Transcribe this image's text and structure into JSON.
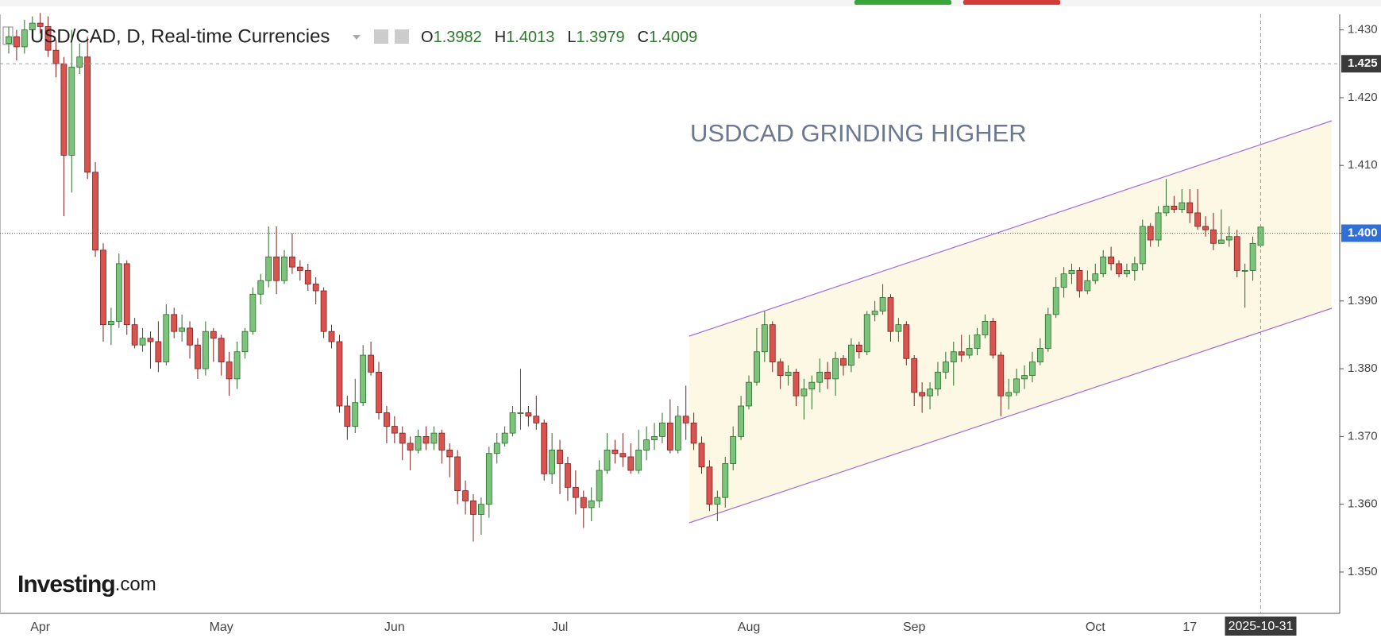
{
  "chart_data": {
    "type": "candlestick",
    "title": "USD/CAD, D, Real-time Currencies",
    "ohlc_labels": [
      "O",
      "H",
      "L",
      "C"
    ],
    "annotation": "USDCAD GRINDING HIGHER",
    "logo": "Investing",
    "logo_suffix": ".com",
    "up_color": "#7cc47c",
    "down_color": "#d9534f",
    "ylim": [
      1.3439,
      1.4323
    ],
    "yticks": [
      {
        "value": 1.35,
        "label": "1.350"
      },
      {
        "value": 1.36,
        "label": "1.360"
      },
      {
        "value": 1.37,
        "label": "1.370"
      },
      {
        "value": 1.38,
        "label": "1.380"
      },
      {
        "value": 1.39,
        "label": "1.390"
      },
      {
        "value": 1.4,
        "label": "1.400"
      },
      {
        "value": 1.41,
        "label": "1.410"
      },
      {
        "value": 1.42,
        "label": "1.420"
      },
      {
        "value": 1.43,
        "label": "1.430"
      }
    ],
    "crosshair": {
      "value": 1.425,
      "label": "1.425"
    },
    "price_line": {
      "value": 1.4,
      "label": "1.400"
    },
    "categories": [
      null,
      null,
      null,
      null,
      "Apr",
      null,
      null,
      null,
      null,
      null,
      null,
      null,
      null,
      null,
      null,
      null,
      null,
      null,
      null,
      null,
      null,
      null,
      null,
      null,
      null,
      null,
      null,
      "May",
      null,
      null,
      null,
      null,
      null,
      null,
      null,
      null,
      null,
      null,
      null,
      null,
      null,
      null,
      null,
      null,
      null,
      null,
      null,
      null,
      null,
      "Jun",
      null,
      null,
      null,
      null,
      null,
      null,
      null,
      null,
      null,
      null,
      null,
      null,
      null,
      null,
      null,
      null,
      null,
      null,
      null,
      null,
      "Jul",
      null,
      null,
      null,
      null,
      null,
      null,
      null,
      null,
      null,
      null,
      null,
      null,
      null,
      null,
      null,
      null,
      null,
      null,
      null,
      null,
      null,
      null,
      null,
      "Aug",
      null,
      null,
      null,
      null,
      null,
      null,
      null,
      null,
      null,
      null,
      null,
      null,
      null,
      null,
      null,
      null,
      null,
      null,
      null,
      null,
      "Sep",
      null,
      null,
      null,
      null,
      null,
      null,
      null,
      null,
      null,
      null,
      null,
      null,
      null,
      null,
      null,
      null,
      null,
      null,
      null,
      null,
      null,
      null,
      "Oct",
      null,
      null,
      null,
      null,
      null,
      null,
      null,
      null,
      null,
      null,
      null,
      "17",
      null,
      null,
      null,
      null,
      null,
      null,
      null,
      null,
      "2025-10-31"
    ],
    "series": [
      {
        "name": "USD/CAD",
        "open": [
          1.428,
          1.429,
          1.4275,
          1.43,
          1.431,
          1.4305,
          1.427,
          1.425,
          1.4115,
          1.4245,
          1.426,
          1.409,
          1.3975,
          1.3865,
          1.387,
          1.3955,
          1.3865,
          1.3835,
          1.3845,
          1.384,
          1.381,
          1.388,
          1.3855,
          1.386,
          1.3835,
          1.38,
          1.3855,
          1.3845,
          1.381,
          1.3785,
          1.3825,
          1.3855,
          1.391,
          1.393,
          1.3965,
          1.393,
          1.3965,
          1.395,
          1.3945,
          1.3925,
          1.3915,
          1.3855,
          1.384,
          1.3745,
          1.3715,
          1.375,
          1.382,
          1.3795,
          1.3735,
          1.3715,
          1.3705,
          1.369,
          1.368,
          1.37,
          1.369,
          1.3705,
          1.368,
          1.367,
          1.362,
          1.3605,
          1.3585,
          1.36,
          1.3675,
          1.369,
          1.3705,
          1.3735,
          1.3735,
          1.373,
          1.372,
          1.3645,
          1.368,
          1.366,
          1.3625,
          1.361,
          1.3595,
          1.3605,
          1.365,
          1.368,
          1.3675,
          1.367,
          1.365,
          1.368,
          1.3695,
          1.37,
          1.372,
          1.368,
          1.373,
          1.372,
          1.369,
          1.3655,
          1.36,
          1.361,
          1.366,
          1.37,
          1.3745,
          1.378,
          1.3825,
          1.3865,
          1.381,
          1.379,
          1.3795,
          1.376,
          1.377,
          1.378,
          1.3795,
          1.3785,
          1.3815,
          1.3805,
          1.3835,
          1.3825,
          1.388,
          1.3885,
          1.3905,
          1.3855,
          1.3865,
          1.3815,
          1.3765,
          1.376,
          1.377,
          1.3795,
          1.381,
          1.3825,
          1.382,
          1.383,
          1.385,
          1.387,
          1.382,
          1.376,
          1.3765,
          1.3785,
          1.379,
          1.381,
          1.383,
          1.388,
          1.392,
          1.394,
          1.3945,
          1.3915,
          1.393,
          1.394,
          1.3965,
          1.3955,
          1.394,
          1.3945,
          1.3955,
          1.401,
          1.399,
          1.403,
          1.404,
          1.4035,
          1.4045,
          1.403,
          1.401,
          1.4005,
          1.3985,
          1.399,
          1.3995,
          1.3945,
          1.3945,
          1.3982
        ],
        "high": [
          1.4305,
          1.43,
          1.4315,
          1.432,
          1.4325,
          1.432,
          1.4285,
          1.426,
          1.43,
          1.428,
          1.429,
          1.4105,
          1.3985,
          1.389,
          1.397,
          1.396,
          1.3875,
          1.386,
          1.3855,
          1.387,
          1.3895,
          1.389,
          1.388,
          1.387,
          1.3845,
          1.387,
          1.386,
          1.385,
          1.3825,
          1.384,
          1.386,
          1.392,
          1.394,
          1.401,
          1.401,
          1.3975,
          1.4,
          1.396,
          1.3955,
          1.3935,
          1.392,
          1.3865,
          1.385,
          1.376,
          1.3785,
          1.3835,
          1.384,
          1.381,
          1.3745,
          1.373,
          1.3715,
          1.37,
          1.371,
          1.3715,
          1.3715,
          1.371,
          1.369,
          1.368,
          1.3635,
          1.3615,
          1.361,
          1.3685,
          1.3705,
          1.3715,
          1.3745,
          1.38,
          1.3745,
          1.376,
          1.3725,
          1.3705,
          1.3695,
          1.367,
          1.365,
          1.362,
          1.3625,
          1.3665,
          1.3705,
          1.3695,
          1.3705,
          1.369,
          1.371,
          1.3715,
          1.372,
          1.3735,
          1.3755,
          1.3745,
          1.3775,
          1.3735,
          1.37,
          1.3665,
          1.362,
          1.367,
          1.3715,
          1.376,
          1.379,
          1.386,
          1.3885,
          1.387,
          1.3815,
          1.3805,
          1.38,
          1.3785,
          1.379,
          1.3815,
          1.381,
          1.3825,
          1.382,
          1.3845,
          1.384,
          1.3885,
          1.39,
          1.3925,
          1.391,
          1.3875,
          1.387,
          1.382,
          1.378,
          1.378,
          1.381,
          1.3825,
          1.384,
          1.385,
          1.385,
          1.386,
          1.388,
          1.3875,
          1.3825,
          1.3785,
          1.38,
          1.3805,
          1.3825,
          1.3845,
          1.389,
          1.3935,
          1.395,
          1.3955,
          1.395,
          1.3945,
          1.3955,
          1.3975,
          1.398,
          1.396,
          1.3955,
          1.3965,
          1.402,
          1.4015,
          1.404,
          1.408,
          1.4055,
          1.4065,
          1.4065,
          1.4065,
          1.4025,
          1.403,
          1.4035,
          1.401,
          1.4005,
          1.3955,
          1.3995,
          1.4013
        ],
        "low": [
          1.4265,
          1.4255,
          1.4265,
          1.429,
          1.4295,
          1.426,
          1.423,
          1.4025,
          1.406,
          1.4235,
          1.408,
          1.3965,
          1.384,
          1.3835,
          1.386,
          1.385,
          1.383,
          1.3825,
          1.38,
          1.3795,
          1.3805,
          1.3845,
          1.384,
          1.3815,
          1.3785,
          1.379,
          1.381,
          1.379,
          1.376,
          1.377,
          1.3815,
          1.385,
          1.3895,
          1.392,
          1.391,
          1.3925,
          1.394,
          1.393,
          1.3915,
          1.3895,
          1.3845,
          1.383,
          1.3735,
          1.3695,
          1.3705,
          1.3745,
          1.379,
          1.3725,
          1.369,
          1.369,
          1.3665,
          1.365,
          1.3675,
          1.368,
          1.368,
          1.366,
          1.364,
          1.36,
          1.3585,
          1.3545,
          1.3555,
          1.358,
          1.366,
          1.3685,
          1.37,
          1.371,
          1.3715,
          1.371,
          1.3635,
          1.363,
          1.3615,
          1.3605,
          1.3585,
          1.3565,
          1.3575,
          1.3595,
          1.3645,
          1.366,
          1.3655,
          1.3645,
          1.3645,
          1.3665,
          1.368,
          1.369,
          1.3675,
          1.3675,
          1.3695,
          1.368,
          1.3645,
          1.359,
          1.3575,
          1.3595,
          1.365,
          1.3695,
          1.374,
          1.3775,
          1.381,
          1.3795,
          1.377,
          1.3775,
          1.3745,
          1.3725,
          1.374,
          1.3765,
          1.377,
          1.376,
          1.379,
          1.3795,
          1.3815,
          1.382,
          1.387,
          1.388,
          1.384,
          1.384,
          1.3805,
          1.3745,
          1.3735,
          1.374,
          1.376,
          1.3785,
          1.3775,
          1.381,
          1.3815,
          1.382,
          1.3845,
          1.3815,
          1.373,
          1.374,
          1.376,
          1.377,
          1.378,
          1.3805,
          1.3825,
          1.3875,
          1.3905,
          1.3925,
          1.3905,
          1.391,
          1.3925,
          1.3935,
          1.3945,
          1.3935,
          1.3935,
          1.393,
          1.3945,
          1.398,
          1.398,
          1.4025,
          1.403,
          1.403,
          1.4015,
          1.4005,
          1.3995,
          1.3975,
          1.3985,
          1.398,
          1.3935,
          1.389,
          1.393,
          1.3979
        ],
        "close": [
          1.429,
          1.4275,
          1.43,
          1.431,
          1.4305,
          1.427,
          1.425,
          1.4115,
          1.4245,
          1.426,
          1.409,
          1.3975,
          1.3865,
          1.387,
          1.3955,
          1.3865,
          1.3835,
          1.3845,
          1.384,
          1.381,
          1.388,
          1.3855,
          1.386,
          1.3835,
          1.38,
          1.3855,
          1.3845,
          1.381,
          1.3785,
          1.3825,
          1.3855,
          1.391,
          1.393,
          1.3965,
          1.393,
          1.3965,
          1.395,
          1.3945,
          1.3925,
          1.3915,
          1.3855,
          1.384,
          1.3745,
          1.3715,
          1.375,
          1.382,
          1.3795,
          1.3735,
          1.3715,
          1.3705,
          1.369,
          1.368,
          1.37,
          1.369,
          1.3705,
          1.368,
          1.367,
          1.362,
          1.3605,
          1.3585,
          1.36,
          1.3675,
          1.369,
          1.3705,
          1.3735,
          1.3735,
          1.373,
          1.372,
          1.3645,
          1.368,
          1.366,
          1.3625,
          1.361,
          1.3595,
          1.3605,
          1.365,
          1.368,
          1.3675,
          1.367,
          1.365,
          1.368,
          1.3695,
          1.37,
          1.372,
          1.368,
          1.373,
          1.372,
          1.369,
          1.3655,
          1.36,
          1.361,
          1.366,
          1.37,
          1.3745,
          1.378,
          1.3825,
          1.3865,
          1.381,
          1.379,
          1.3795,
          1.376,
          1.377,
          1.378,
          1.3795,
          1.3785,
          1.3815,
          1.3805,
          1.3835,
          1.3825,
          1.388,
          1.3885,
          1.3905,
          1.3855,
          1.3865,
          1.3815,
          1.3765,
          1.376,
          1.377,
          1.3795,
          1.381,
          1.3825,
          1.382,
          1.383,
          1.385,
          1.387,
          1.382,
          1.376,
          1.3765,
          1.3785,
          1.379,
          1.381,
          1.383,
          1.388,
          1.392,
          1.394,
          1.3945,
          1.3915,
          1.393,
          1.394,
          1.3965,
          1.3955,
          1.394,
          1.3945,
          1.3955,
          1.401,
          1.399,
          1.403,
          1.404,
          1.4035,
          1.4045,
          1.403,
          1.401,
          1.4005,
          1.3985,
          1.399,
          1.3995,
          1.3945,
          1.3945,
          1.3985,
          1.4009
        ]
      }
    ]
  }
}
